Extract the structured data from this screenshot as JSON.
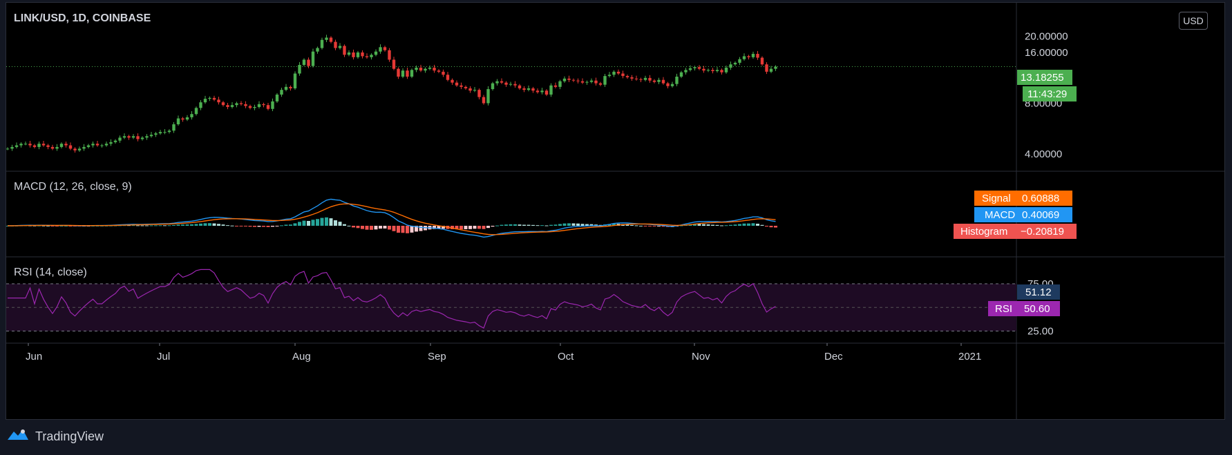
{
  "header": {
    "symbol_title": "LINK/USD, 1D, COINBASE",
    "currency_button": "USD"
  },
  "footer": {
    "brand": "TradingView"
  },
  "colors": {
    "up": "#26a69a",
    "up_candle": "#4caf50",
    "down": "#ef5350",
    "down_candle": "#e53935",
    "macd": "#2196f3",
    "signal": "#ff6d00",
    "hist_up": "#26a69a",
    "hist_up_light": "#b2dfdb",
    "hist_down": "#ef5350",
    "hist_down_light": "#ffcdd2",
    "rsi": "#9c27b0",
    "rsi_band": "#1e0b24"
  },
  "chart_data": [
    {
      "type": "candlestick",
      "title": "LINK/USD, 1D, COINBASE",
      "y_axis_ticks": [
        "4.00000",
        "8.00000",
        "16.00000",
        "20.00000"
      ],
      "last_price": "13.18255",
      "countdown": "11:43:29",
      "x_tick_labels": [
        "Jun",
        "Jul",
        "Aug",
        "Sep",
        "Oct",
        "Nov",
        "Dec",
        "2021"
      ],
      "close_series": [
        4.3,
        4.4,
        4.5,
        4.6,
        4.6,
        4.5,
        4.4,
        4.6,
        4.5,
        4.4,
        4.3,
        4.4,
        4.6,
        4.5,
        4.3,
        4.2,
        4.3,
        4.4,
        4.5,
        4.6,
        4.5,
        4.5,
        4.6,
        4.7,
        4.8,
        5.0,
        5.1,
        5.0,
        5.1,
        4.9,
        5.0,
        5.1,
        5.2,
        5.3,
        5.4,
        5.4,
        5.5,
        6.0,
        6.5,
        6.4,
        6.6,
        6.9,
        7.5,
        8.1,
        8.5,
        8.6,
        8.4,
        8.1,
        7.8,
        7.6,
        7.8,
        8.0,
        7.9,
        7.7,
        7.5,
        7.6,
        7.9,
        7.8,
        7.4,
        8.2,
        9.0,
        9.6,
        10.0,
        9.8,
        12.0,
        13.5,
        14.5,
        13.3,
        16.2,
        17.0,
        19.0,
        19.6,
        18.5,
        17.0,
        17.5,
        15.5,
        16.0,
        15.0,
        16.0,
        15.2,
        15.0,
        15.5,
        16.2,
        17.2,
        16.5,
        14.5,
        12.8,
        11.5,
        12.5,
        11.5,
        12.6,
        13.0,
        12.5,
        12.8,
        13.0,
        12.5,
        12.3,
        11.8,
        11.0,
        10.6,
        10.2,
        10.0,
        9.8,
        9.5,
        9.6,
        8.7,
        8.0,
        9.7,
        10.5,
        10.8,
        10.6,
        10.3,
        10.4,
        10.2,
        9.8,
        9.6,
        9.8,
        9.5,
        9.3,
        9.5,
        9.0,
        10.2,
        10.0,
        10.8,
        11.2,
        11.0,
        10.9,
        10.8,
        10.6,
        10.7,
        10.9,
        10.5,
        10.3,
        11.6,
        11.8,
        12.3,
        12.0,
        11.6,
        11.4,
        11.2,
        11.1,
        11.0,
        11.3,
        10.9,
        10.7,
        11.0,
        10.5,
        10.1,
        10.4,
        11.5,
        12.2,
        12.6,
        12.9,
        13.1,
        12.8,
        12.5,
        12.6,
        12.4,
        12.6,
        12.2,
        13.0,
        13.6,
        13.9,
        14.6,
        15.2,
        15.0,
        15.7,
        14.9,
        13.6,
        12.3,
        12.8,
        13.18
      ],
      "indicators": [
        {
          "name": "MACD (12, 26, close, 9)",
          "series": [
            {
              "name": "Signal",
              "value": "0.60888"
            },
            {
              "name": "MACD",
              "value": "0.40069"
            },
            {
              "name": "Histogram",
              "value": "−0.20819"
            }
          ]
        },
        {
          "name": "RSI (14, close)",
          "levels": [
            "75.00",
            "25.00"
          ],
          "tags": [
            {
              "label": "",
              "value": "51.12"
            },
            {
              "label": "RSI",
              "value": "50.60"
            }
          ]
        }
      ]
    }
  ]
}
